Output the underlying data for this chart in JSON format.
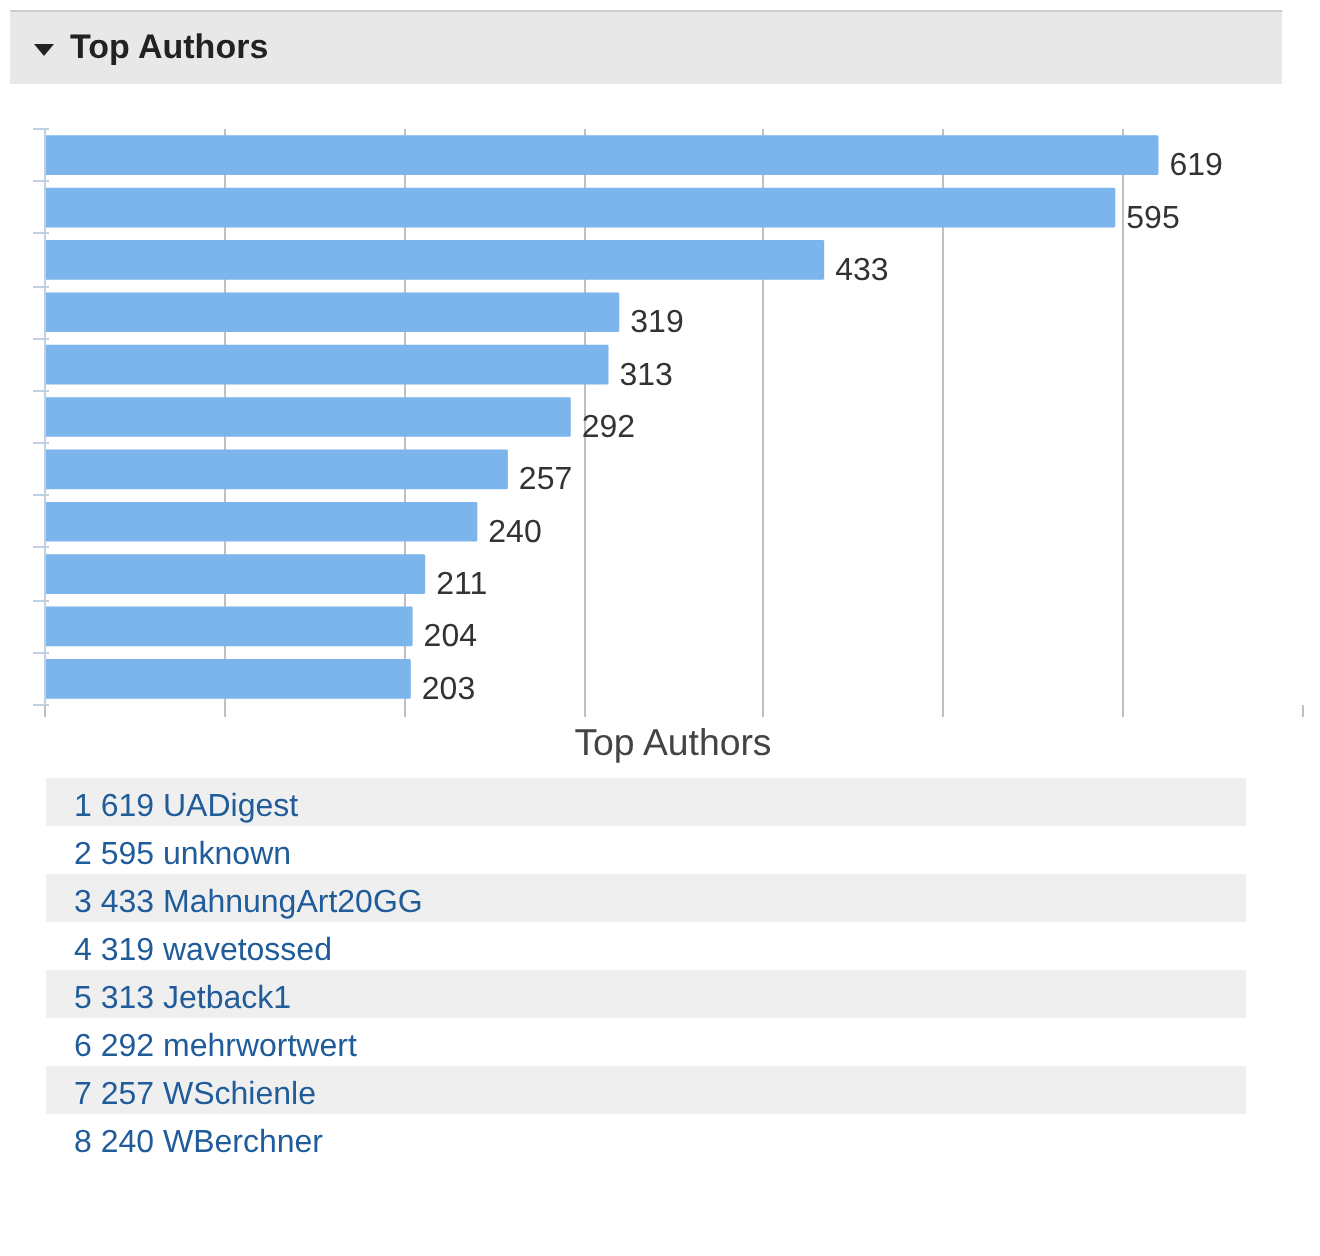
{
  "chart_data": {
    "type": "bar",
    "orientation": "horizontal",
    "title": "Top Authors",
    "xlabel": "Top Authors",
    "categories": [
      null,
      null,
      null,
      null,
      null,
      null,
      null,
      null,
      null,
      null,
      null
    ],
    "values": [
      619,
      595,
      433,
      319,
      313,
      292,
      257,
      240,
      211,
      204,
      203
    ],
    "color": "#7cb5ec",
    "data_labels": true,
    "xticks": [
      {
        "value": 0,
        "label": null
      },
      {
        "value": 100,
        "label": null
      },
      {
        "value": 200,
        "label": null
      },
      {
        "value": 300,
        "label": null
      },
      {
        "value": 400,
        "label": null
      },
      {
        "value": 500,
        "label": null
      },
      {
        "value": 600,
        "label": null
      },
      {
        "value": 700,
        "label": null
      }
    ],
    "grid": "x",
    "tick_labels": false,
    "annotations": [
      "1 619 UADigest",
      "2 595 unknown",
      "3 433 MahnungArt20GG",
      "4 319 wavetossed",
      "5 313 Jetback1",
      "6 292 mehrwortwert",
      "7 257 WSchienle",
      "8 240 WBerchner"
    ]
  }
}
